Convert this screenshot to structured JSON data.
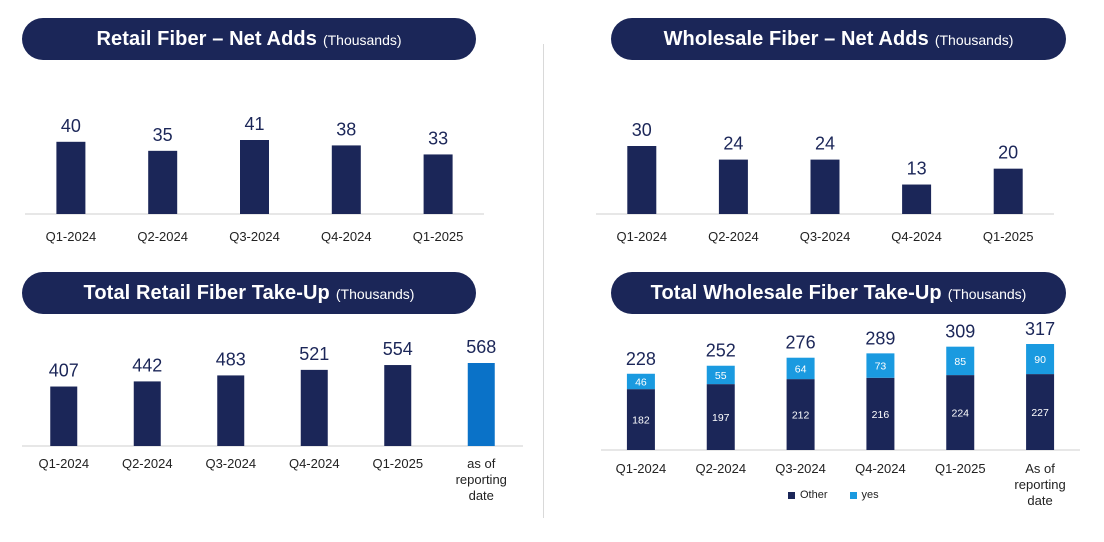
{
  "panels": {
    "retail_net_adds": {
      "title": "Retail Fiber – Net Adds",
      "unit": "(Thousands)"
    },
    "wholesale_net_adds": {
      "title": "Wholesale Fiber – Net Adds",
      "unit": "(Thousands)"
    },
    "retail_takeup": {
      "title": "Total Retail Fiber Take-Up",
      "unit": "(Thousands)"
    },
    "wholesale_takeup": {
      "title": "Total Wholesale Fiber Take-Up",
      "unit": "(Thousands)"
    }
  },
  "colors": {
    "navy": "#1b2658",
    "blue": "#0a72c8",
    "light_blue": "#1a9ae0",
    "axis": "#cfcfcf"
  },
  "chart_data": [
    {
      "id": "retail_net_adds",
      "type": "bar",
      "title": "Retail Fiber – Net Adds (Thousands)",
      "categories": [
        "Q1-2024",
        "Q2-2024",
        "Q3-2024",
        "Q4-2024",
        "Q1-2025"
      ],
      "values": [
        40,
        35,
        41,
        38,
        33
      ],
      "ylim": [
        0,
        41
      ],
      "grid": false
    },
    {
      "id": "wholesale_net_adds",
      "type": "bar",
      "title": "Wholesale Fiber – Net Adds (Thousands)",
      "categories": [
        "Q1-2024",
        "Q2-2024",
        "Q3-2024",
        "Q4-2024",
        "Q1-2025"
      ],
      "values": [
        30,
        24,
        24,
        13,
        20
      ],
      "ylim": [
        0,
        30
      ],
      "grid": false
    },
    {
      "id": "retail_takeup",
      "type": "bar",
      "title": "Total Retail Fiber Take-Up (Thousands)",
      "categories": [
        "Q1-2024",
        "Q2-2024",
        "Q3-2024",
        "Q4-2024",
        "Q1-2025",
        "as of reporting date"
      ],
      "values": [
        407,
        442,
        483,
        521,
        554,
        568
      ],
      "highlight_last": true,
      "ylim": [
        0,
        568
      ],
      "grid": false
    },
    {
      "id": "wholesale_takeup",
      "type": "bar",
      "stacked": true,
      "title": "Total Wholesale Fiber Take-Up (Thousands)",
      "categories": [
        "Q1-2024",
        "Q2-2024",
        "Q3-2024",
        "Q4-2024",
        "Q1-2025",
        "As of reporting date"
      ],
      "totals": [
        228,
        252,
        276,
        289,
        309,
        317
      ],
      "series": [
        {
          "name": "Other",
          "values": [
            182,
            197,
            212,
            216,
            224,
            227
          ]
        },
        {
          "name": "yes",
          "values": [
            46,
            55,
            64,
            73,
            85,
            90
          ]
        }
      ],
      "legend": "bottom",
      "ylim": [
        0,
        317
      ],
      "grid": false
    }
  ]
}
